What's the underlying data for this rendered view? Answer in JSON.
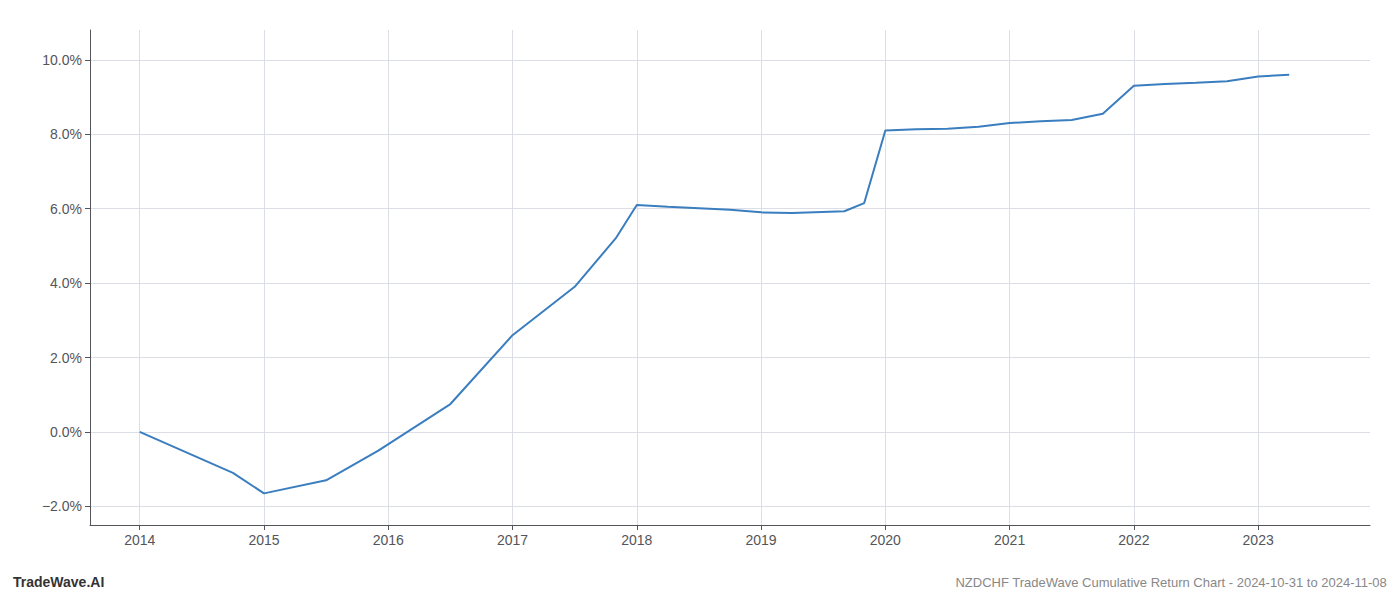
{
  "chart_data": {
    "type": "line",
    "title": "NZDCHF TradeWave Cumulative Return Chart - 2024-10-31 to 2024-11-08",
    "annotations": [
      "TradeWave.AI"
    ],
    "x": [
      2014,
      2014.75,
      2015,
      2015.5,
      2015.92,
      2016.5,
      2017,
      2017.5,
      2017.83,
      2018,
      2018.25,
      2018.75,
      2019,
      2019.25,
      2019.67,
      2019.83,
      2020,
      2020.25,
      2020.5,
      2020.75,
      2021,
      2021.25,
      2021.5,
      2021.75,
      2022,
      2022.25,
      2022.5,
      2022.75,
      2023,
      2023.25
    ],
    "values": [
      0.0,
      -1.1,
      -1.65,
      -1.3,
      -0.5,
      0.75,
      2.6,
      3.9,
      5.2,
      6.1,
      6.05,
      5.97,
      5.9,
      5.88,
      5.93,
      6.15,
      8.1,
      8.13,
      8.15,
      8.2,
      8.3,
      8.35,
      8.38,
      8.55,
      9.3,
      9.35,
      9.38,
      9.42,
      9.55,
      9.6
    ],
    "color": "#3a7ebf",
    "xlim": [
      2013.6,
      2023.9
    ],
    "xticks": [
      2014,
      2015,
      2016,
      2017,
      2018,
      2019,
      2020,
      2021,
      2022,
      2023
    ],
    "ylim": [
      -2.5,
      10.8
    ],
    "yticks": [
      {
        "value": -2.0,
        "label": "−2.0%"
      },
      {
        "value": 0.0,
        "label": "0.0%"
      },
      {
        "value": 2.0,
        "label": "2.0%"
      },
      {
        "value": 4.0,
        "label": "4.0%"
      },
      {
        "value": 6.0,
        "label": "6.0%"
      },
      {
        "value": 8.0,
        "label": "8.0%"
      },
      {
        "value": 10.0,
        "label": "10.0%"
      }
    ],
    "grid": true
  }
}
